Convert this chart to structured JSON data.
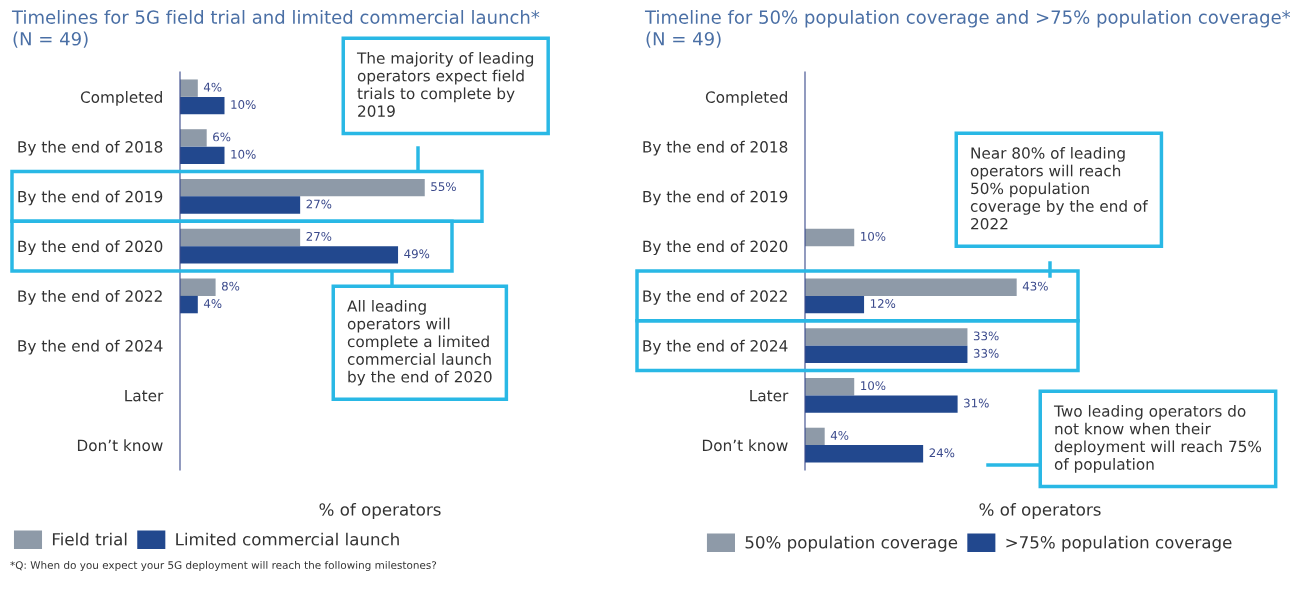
{
  "chart_data": [
    {
      "type": "bar",
      "orientation": "horizontal",
      "title": "Timelines for 5G field trial and limited commercial launch*\n(N = 49)",
      "xlabel": "% of operators",
      "categories": [
        "Completed",
        "By the end of 2018",
        "By the end of 2019",
        "By the end of 2020",
        "By the end of 2022",
        "By the end of 2024",
        "Later",
        "Don’t know"
      ],
      "series": [
        {
          "name": "Field trial",
          "color": "#8e9aa8",
          "values": [
            4,
            6,
            55,
            27,
            8,
            null,
            null,
            null
          ],
          "value_labels": [
            "4%",
            "6%",
            "55%",
            "27%",
            "8%",
            null,
            null,
            null
          ]
        },
        {
          "name": "Limited commercial launch",
          "color": "#22488e",
          "values": [
            10,
            10,
            27,
            49,
            4,
            null,
            null,
            null
          ],
          "value_labels": [
            "10%",
            "10%",
            "27%",
            "49%",
            "4%",
            null,
            null,
            null
          ]
        }
      ],
      "tick_labels": "y",
      "grid": false,
      "legend": "bottom left",
      "annotations": [
        "The majority of leading\noperators expect field\ntrials to complete by\n2019",
        "All leading\noperators will\ncomplete a limited\ncommercial launch\nby the end of 2020",
        "*Q: When do you expect your 5G deployment will reach the following milestones?"
      ]
    },
    {
      "type": "bar",
      "orientation": "horizontal",
      "title": "Timeline for 50% population coverage and >75% population coverage*\n(N = 49)",
      "xlabel": "% of operators",
      "categories": [
        "Completed",
        "By the end of 2018",
        "By the end of 2019",
        "By the end of 2020",
        "By the end of 2022",
        "By the end of 2024",
        "Later",
        "Don’t know"
      ],
      "series": [
        {
          "name": "50% population coverage",
          "color": "#8e9aa8",
          "values": [
            null,
            null,
            null,
            10,
            43,
            33,
            10,
            4
          ],
          "value_labels": [
            null,
            null,
            null,
            "10%",
            "43%",
            "33%",
            "10%",
            "4%"
          ]
        },
        {
          "name": ">75% population coverage",
          "color": "#22488e",
          "values": [
            null,
            null,
            null,
            null,
            12,
            33,
            31,
            24
          ],
          "value_labels": [
            null,
            null,
            null,
            null,
            "12%",
            "33%",
            "31%",
            "24%"
          ]
        }
      ],
      "tick_labels": "y",
      "grid": false,
      "legend": "bottom",
      "annotations": [
        "Near 80% of leading\noperators will reach\n50% population\ncoverage by the end of\n2022",
        "Two leading operators do\nnot know when their\ndeployment will reach 75%\nof population"
      ]
    }
  ]
}
